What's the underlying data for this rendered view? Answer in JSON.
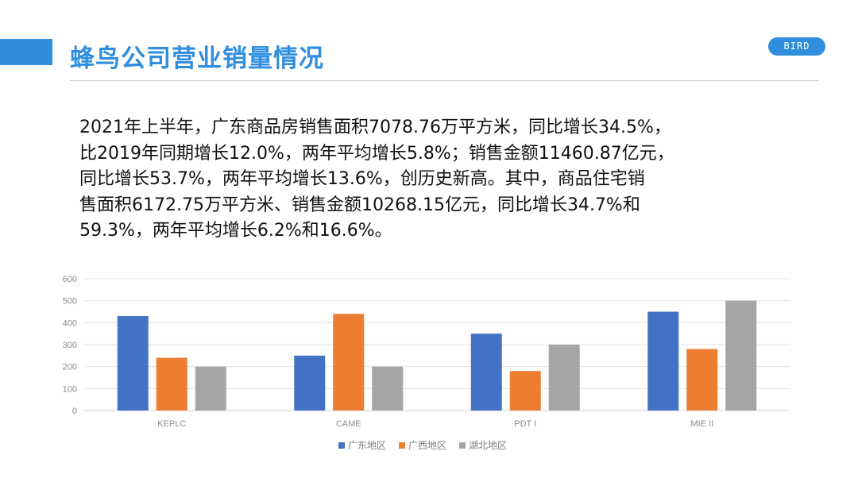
{
  "header": {
    "title": "蜂鸟公司营业销量情况",
    "brand": "BIRD"
  },
  "body": {
    "lines": [
      "2021年上半年，广东商品房销售面积7078.76万平方米，同比增长34.5%，",
      "比2019年同期增长12.0%，两年平均增长5.8%；销售金额11460.87亿元，",
      "同比增长53.7%，两年平均增长13.6%，创历史新高。其中，商品住宅销",
      "售面积6172.75万平方米、销售金额10268.15亿元，同比增长34.7%和",
      "59.3%，两年平均增长6.2%和16.6%。"
    ]
  },
  "colors": {
    "accent": "#2f8fde",
    "series": [
      "#4472c4",
      "#ed7d31",
      "#a5a5a5"
    ]
  },
  "chart_data": {
    "type": "bar",
    "categories": [
      "KEPLC",
      "CAME",
      "PDT I",
      "MIE II"
    ],
    "series": [
      {
        "name": "广东地区",
        "values": [
          430,
          250,
          350,
          450
        ]
      },
      {
        "name": "广西地区",
        "values": [
          240,
          440,
          180,
          280
        ]
      },
      {
        "name": "湖北地区",
        "values": [
          200,
          200,
          300,
          500
        ]
      }
    ],
    "yticks": [
      "0",
      "100",
      "200",
      "300",
      "400",
      "500",
      "600"
    ],
    "ylim": [
      0,
      600
    ],
    "grid": true,
    "legend": "bottom"
  }
}
